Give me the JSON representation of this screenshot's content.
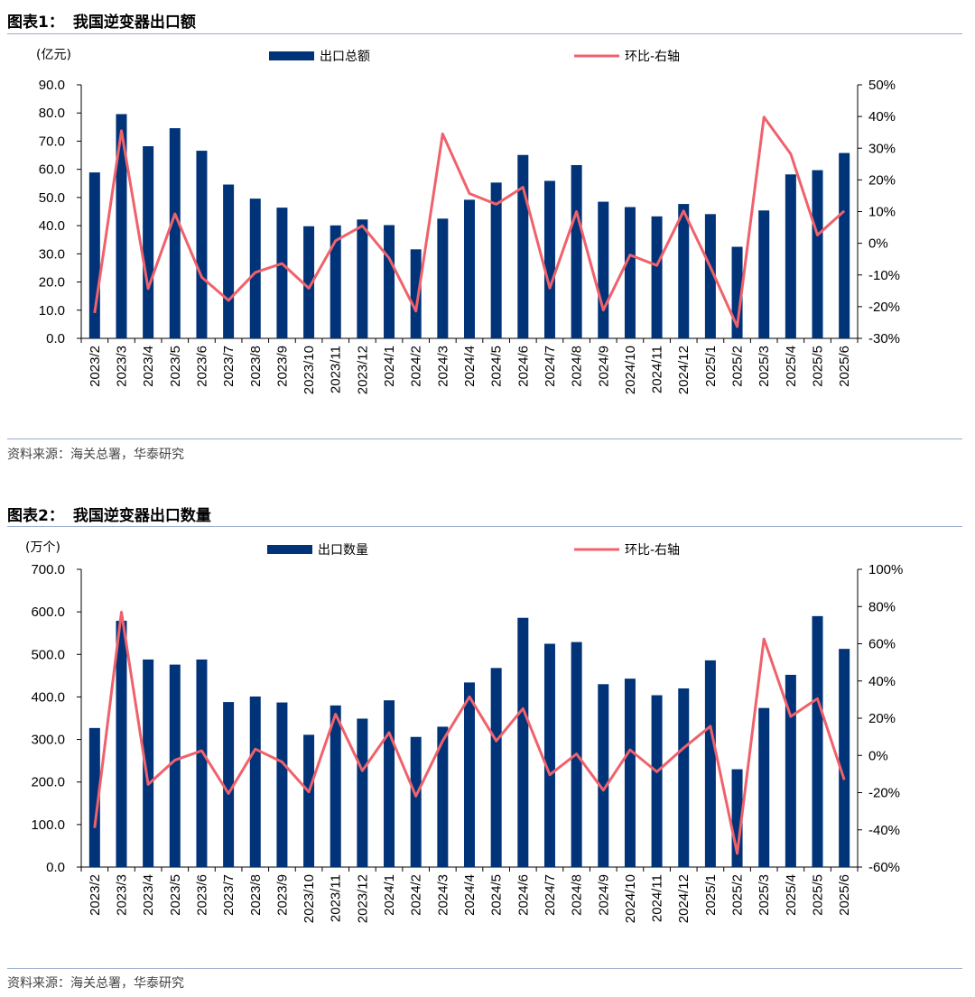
{
  "chart_data": [
    {
      "type": "bar",
      "figure_label": "图表1：",
      "title": "我国逆变器出口额",
      "unit_label": "(亿元)",
      "source": "资料来源：海关总署，华泰研究",
      "categories": [
        "2023/2",
        "2023/3",
        "2023/4",
        "2023/5",
        "2023/6",
        "2023/7",
        "2023/8",
        "2023/9",
        "2023/10",
        "2023/11",
        "2023/12",
        "2024/1",
        "2024/2",
        "2024/3",
        "2024/4",
        "2024/5",
        "2024/6",
        "2024/7",
        "2024/8",
        "2024/9",
        "2024/10",
        "2024/11",
        "2024/12",
        "2025/1",
        "2025/2",
        "2025/3",
        "2025/4",
        "2025/5",
        "2025/6"
      ],
      "series": [
        {
          "name": "出口总额",
          "type": "bar",
          "axis": "left",
          "color": "#003378",
          "values": [
            58.9,
            79.6,
            68.2,
            74.6,
            66.6,
            54.6,
            49.6,
            46.4,
            39.8,
            40.1,
            42.2,
            40.2,
            31.6,
            42.5,
            49.2,
            55.3,
            65.1,
            55.9,
            61.5,
            48.5,
            46.6,
            43.3,
            47.7,
            44.1,
            32.5,
            45.4,
            58.2,
            59.7,
            65.8
          ]
        },
        {
          "name": "环比-右轴",
          "type": "line",
          "axis": "right",
          "color": "#f0616b",
          "values": [
            -22,
            35.5,
            -14.3,
            9.3,
            -10.7,
            -18,
            -9.2,
            -6.4,
            -14.2,
            0.8,
            5.5,
            -4.7,
            -21.4,
            34.5,
            15.7,
            12.3,
            17.7,
            -14.1,
            10,
            -21.1,
            -3.7,
            -7,
            10.2,
            -7.5,
            -26.3,
            39.8,
            28.2,
            2.6,
            10.2
          ]
        }
      ],
      "ylim_left": [
        0,
        90
      ],
      "yticks_left": [
        "0.0",
        "10.0",
        "20.0",
        "30.0",
        "40.0",
        "50.0",
        "60.0",
        "70.0",
        "80.0",
        "90.0"
      ],
      "ylim_right": [
        -30,
        50
      ],
      "yticks_right": [
        "-30%",
        "-20%",
        "-10%",
        "0%",
        "10%",
        "20%",
        "30%",
        "40%",
        "50%"
      ],
      "grid": false,
      "legend_position": "top"
    },
    {
      "type": "bar",
      "figure_label": "图表2：",
      "title": "我国逆变器出口数量",
      "unit_label": "(万个)",
      "source": "资料来源：海关总署，华泰研究",
      "categories": [
        "2023/2",
        "2023/3",
        "2023/4",
        "2023/5",
        "2023/6",
        "2023/7",
        "2023/8",
        "2023/9",
        "2023/10",
        "2023/11",
        "2023/12",
        "2024/1",
        "2024/2",
        "2024/3",
        "2024/4",
        "2024/5",
        "2024/6",
        "2024/7",
        "2024/8",
        "2024/9",
        "2024/10",
        "2024/11",
        "2024/12",
        "2025/1",
        "2025/2",
        "2025/3",
        "2025/4",
        "2025/5",
        "2025/6"
      ],
      "series": [
        {
          "name": "出口数量",
          "type": "bar",
          "axis": "left",
          "color": "#003378",
          "values": [
            327,
            579,
            488,
            476,
            488,
            388,
            401,
            387,
            311,
            380,
            349,
            392,
            306,
            330,
            434,
            468,
            586,
            525,
            529,
            430,
            443,
            404,
            420,
            486,
            230,
            374,
            452,
            590,
            513
          ]
        },
        {
          "name": "环比-右轴",
          "type": "line",
          "axis": "right",
          "color": "#f0616b",
          "values": [
            -39,
            77,
            -15.6,
            -2.5,
            2.5,
            -20.5,
            3.4,
            -3.5,
            -19.6,
            22.2,
            -8.2,
            12.3,
            -21.9,
            7.8,
            31.5,
            7.8,
            25.2,
            -10.4,
            0.8,
            -18.7,
            3.0,
            -8.8,
            4.0,
            15.7,
            -52.7,
            62.6,
            20.9,
            30.5,
            -13.1
          ]
        }
      ],
      "ylim_left": [
        0,
        700
      ],
      "yticks_left": [
        "0.0",
        "100.0",
        "200.0",
        "300.0",
        "400.0",
        "500.0",
        "600.0",
        "700.0"
      ],
      "ylim_right": [
        -60,
        100
      ],
      "yticks_right": [
        "-60%",
        "-40%",
        "-20%",
        "0%",
        "20%",
        "40%",
        "60%",
        "80%",
        "100%"
      ],
      "grid": false,
      "legend_position": "top"
    }
  ]
}
